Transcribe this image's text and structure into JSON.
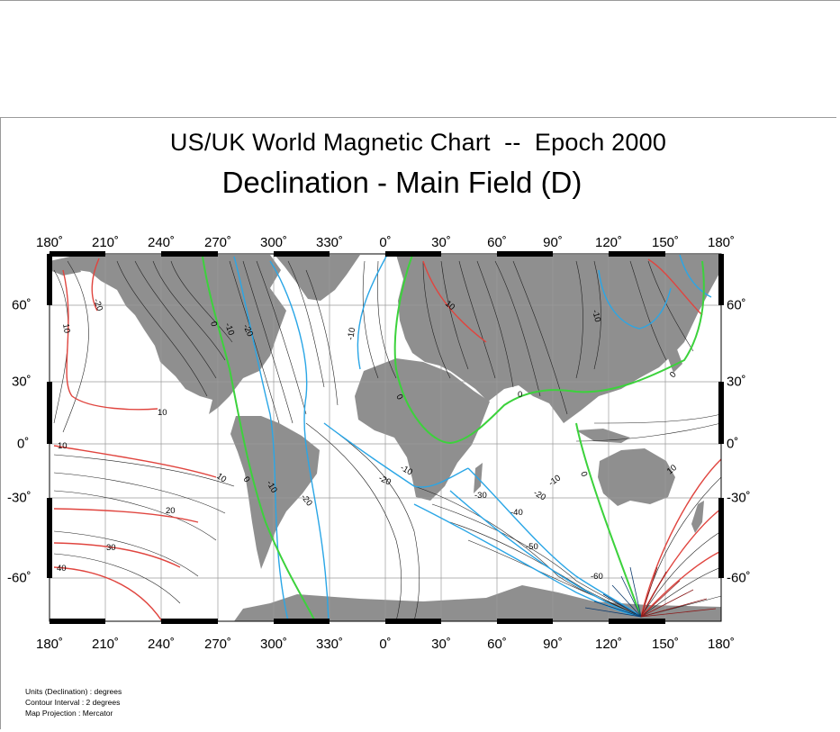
{
  "title": "US/UK World Magnetic Chart  --  Epoch 2000",
  "subtitle": "Declination - Main Field (D)",
  "longitude_labels": [
    "180˚",
    "210˚",
    "240˚",
    "270˚",
    "300˚",
    "330˚",
    "0˚",
    "30˚",
    "60˚",
    "90˚",
    "120˚",
    "150˚",
    "180˚"
  ],
  "latitude_labels": [
    "60˚",
    "30˚",
    "0˚",
    "-30˚",
    "-60˚"
  ],
  "contour_labels": [
    "-20",
    "10",
    "0",
    "-10",
    "-20",
    "-10",
    "10",
    "-10",
    "0",
    "0",
    "0",
    "10",
    "10",
    "0",
    "-10",
    "-20",
    "-10",
    "-20",
    "-30",
    "-20",
    "-10",
    "-40",
    "-50",
    "-60",
    "20",
    "30",
    "40",
    "0",
    "10"
  ],
  "legend": {
    "units": "Units (Declination) : degrees",
    "interval": "Contour Interval : 2 degrees",
    "projection": "Map Projection : Mercator"
  },
  "colors": {
    "land": "#8f8f8f",
    "zero_line": "#3cd23c",
    "negative": "#2aa6e6",
    "positive": "#e0453f",
    "minor": "#222222",
    "grid": "#9a9a9a"
  }
}
